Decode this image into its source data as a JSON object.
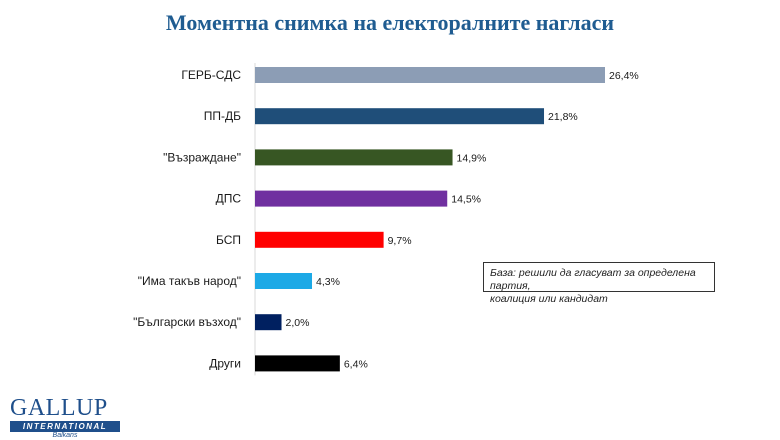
{
  "chart_data": {
    "type": "bar",
    "orientation": "horizontal",
    "title": "Моментна снимка на електоралните нагласи",
    "categories": [
      "ГЕРБ-СДС",
      "ПП-ДБ",
      "\"Възраждане\"",
      "ДПС",
      "БСП",
      "\"Има такъв народ\"",
      "\"Български възход\"",
      "Други"
    ],
    "values": [
      26.4,
      21.8,
      14.9,
      14.5,
      9.7,
      4.3,
      2.0,
      6.4
    ],
    "value_labels": [
      "26,4%",
      "21,8%",
      "14,9%",
      "14,5%",
      "9,7%",
      "4,3%",
      "2,0%",
      "6,4%"
    ],
    "colors": [
      "#8c9db5",
      "#1f4e79",
      "#375623",
      "#7030a0",
      "#ff0000",
      "#1ca9e6",
      "#002060",
      "#000000"
    ],
    "xlim": [
      0,
      30
    ],
    "grid": false,
    "legend": "none"
  },
  "note": {
    "line1": "База: решили да гласуват за определена партия,",
    "line2": "коалиция или кандидат"
  },
  "logo": {
    "main": "GALLUP",
    "band": "INTERNATIONAL",
    "sub": "Balkans"
  }
}
